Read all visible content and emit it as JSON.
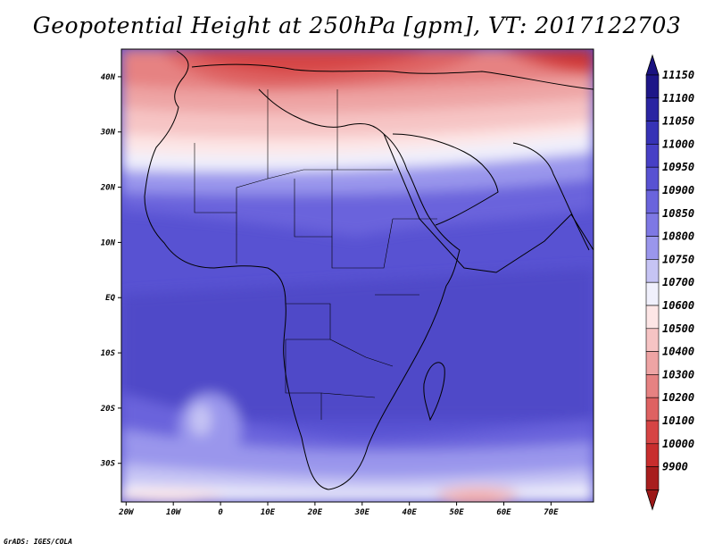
{
  "title": "Geopotential Height at 250hPa [gpm], VT: 2017122703",
  "footer": "GrADS: IGES/COLA",
  "map": {
    "lon_range": [
      -21,
      79
    ],
    "lat_range": [
      -37,
      45
    ],
    "lat_ticks": [
      {
        "value": 40,
        "label": "40N"
      },
      {
        "value": 30,
        "label": "30N"
      },
      {
        "value": 20,
        "label": "20N"
      },
      {
        "value": 10,
        "label": "10N"
      },
      {
        "value": 0,
        "label": "EQ"
      },
      {
        "value": -10,
        "label": "10S"
      },
      {
        "value": -20,
        "label": "20S"
      },
      {
        "value": -30,
        "label": "30S"
      }
    ],
    "lon_ticks": [
      {
        "value": -20,
        "label": "20W"
      },
      {
        "value": -10,
        "label": "10W"
      },
      {
        "value": 0,
        "label": "0"
      },
      {
        "value": 10,
        "label": "10E"
      },
      {
        "value": 20,
        "label": "20E"
      },
      {
        "value": 30,
        "label": "30E"
      },
      {
        "value": 40,
        "label": "40E"
      },
      {
        "value": 50,
        "label": "50E"
      },
      {
        "value": 60,
        "label": "60E"
      },
      {
        "value": 70,
        "label": "70E"
      }
    ]
  },
  "colorbar": {
    "levels": [
      {
        "label": "11150",
        "color": "#1e1688"
      },
      {
        "label": "11100",
        "color": "#2a24a2"
      },
      {
        "label": "11050",
        "color": "#3632b6"
      },
      {
        "label": "11000",
        "color": "#4740c6"
      },
      {
        "label": "10950",
        "color": "#5852d2"
      },
      {
        "label": "10900",
        "color": "#6a64dc"
      },
      {
        "label": "10850",
        "color": "#7e78e4"
      },
      {
        "label": "10800",
        "color": "#9a96ec"
      },
      {
        "label": "10750",
        "color": "#c6c4f4"
      },
      {
        "label": "10700",
        "color": "#f0f0fc"
      },
      {
        "label": "10600",
        "color": "#fde6e6"
      },
      {
        "label": "10500",
        "color": "#f6c4c4"
      },
      {
        "label": "10400",
        "color": "#eea4a4"
      },
      {
        "label": "10300",
        "color": "#e68282"
      },
      {
        "label": "10200",
        "color": "#de6262"
      },
      {
        "label": "10100",
        "color": "#d64444"
      },
      {
        "label": "10000",
        "color": "#c82e2e"
      },
      {
        "label": "9900",
        "color": "#a81e1e"
      }
    ],
    "top_arrow_color": "#1a1280",
    "bottom_arrow_color": "#9c1818"
  }
}
